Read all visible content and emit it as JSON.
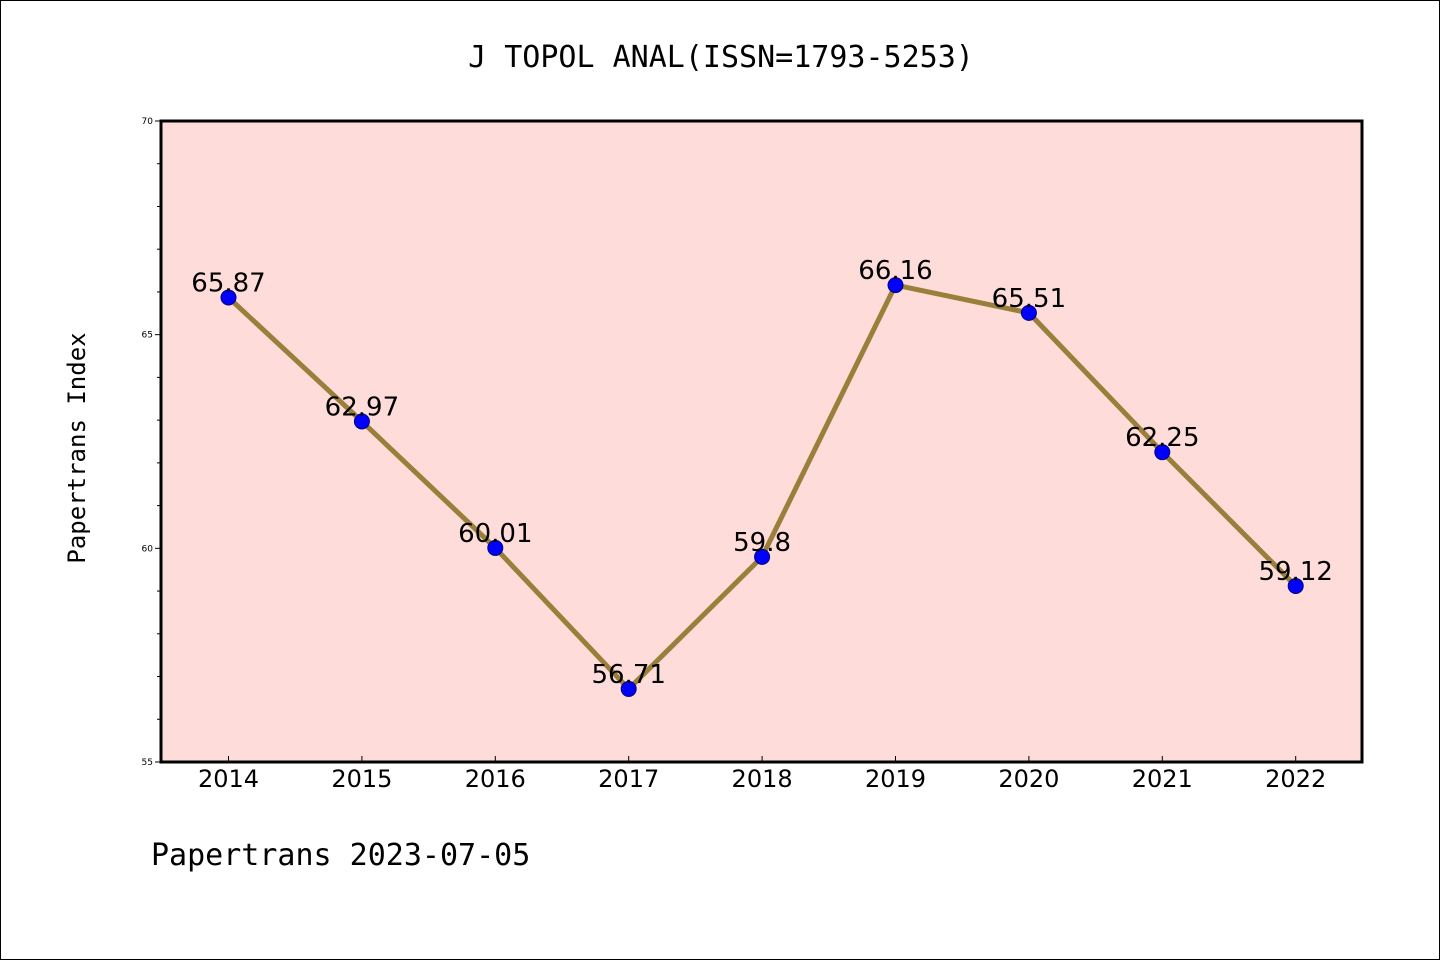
{
  "chart_data": {
    "type": "line",
    "title": "J TOPOL ANAL(ISSN=1793-5253)",
    "xlabel": "",
    "ylabel": "Papertrans Index",
    "footer": "Papertrans 2023-07-05",
    "categories": [
      "2014",
      "2015",
      "2016",
      "2017",
      "2018",
      "2019",
      "2020",
      "2021",
      "2022"
    ],
    "values": [
      65.87,
      62.97,
      60.01,
      56.71,
      59.8,
      66.16,
      65.51,
      62.25,
      59.12
    ],
    "data_labels": [
      "65.87",
      "62.97",
      "60.01",
      "56.71",
      "59.8",
      "66.16",
      "65.51",
      "62.25",
      "59.12"
    ],
    "ylim": [
      55,
      70
    ],
    "yticks": [
      55,
      60,
      65,
      70
    ],
    "ytick_labels": [
      "55",
      "60",
      "65",
      "70"
    ],
    "minor_ytick_step": 1,
    "grid": false,
    "legend": "none",
    "colors": {
      "plot_background": "#fddcda",
      "line": "#9a7f3a",
      "marker": "#0000ff",
      "axes": "#000000"
    }
  }
}
